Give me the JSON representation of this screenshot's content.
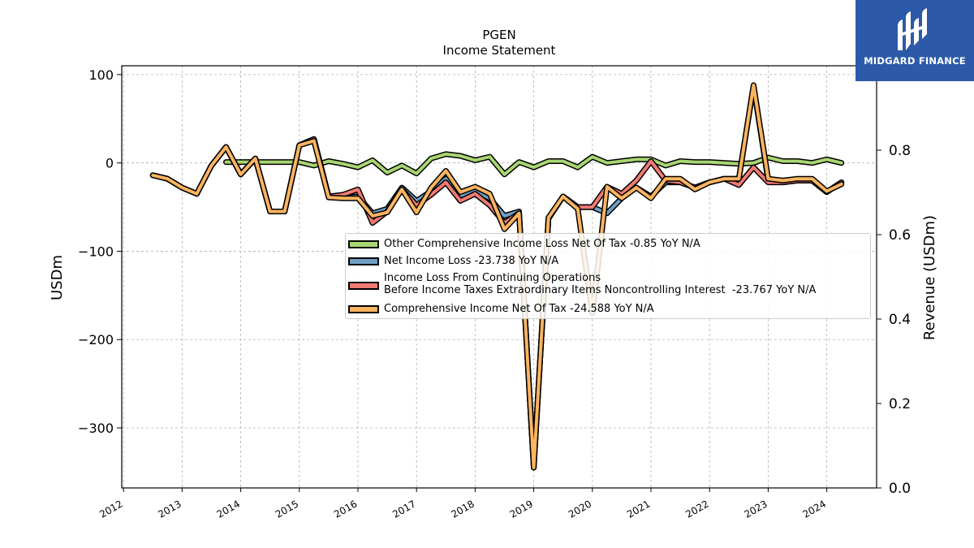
{
  "chart_data": {
    "type": "line",
    "title": "PGEN",
    "subtitle": "Income Statement",
    "ylabel": "USDm",
    "ylabel_right": "Revenue (USDm)",
    "ylim": [
      -368,
      110
    ],
    "ylim_right": [
      0.0,
      1.0
    ],
    "yticks": [
      100,
      0,
      -100,
      -200,
      -300
    ],
    "ytick_labels": [
      "100",
      "0",
      "−100",
      "−200",
      "−300"
    ],
    "yticks_right": [
      0.0,
      0.2,
      0.4,
      0.6,
      0.8
    ],
    "ytick_labels_right": [
      "0.0",
      "0.2",
      "0.4",
      "0.6",
      "0.8"
    ],
    "xticks": [
      2012,
      2013,
      2014,
      2015,
      2016,
      2017,
      2018,
      2019,
      2020,
      2021,
      2022,
      2023,
      2024
    ],
    "xtick_labels": [
      "2012",
      "2013",
      "2014",
      "2015",
      "2016",
      "2017",
      "2018",
      "2019",
      "2020",
      "2021",
      "2022",
      "2023",
      "2024"
    ],
    "grid": true,
    "legend_position": "center-right",
    "series": [
      {
        "name": "Other Comprehensive Income Loss Net Of Tax  -0.85 YoY N/A",
        "color": "#a8d672",
        "x": [
          2013.75,
          2014.0,
          2014.25,
          2014.5,
          2014.75,
          2015.0,
          2015.25,
          2015.5,
          2015.75,
          2016.0,
          2016.25,
          2016.5,
          2016.75,
          2017.0,
          2017.25,
          2017.5,
          2017.75,
          2018.0,
          2018.25,
          2018.5,
          2018.75,
          2019.0,
          2019.25,
          2019.5,
          2019.75,
          2020.0,
          2020.25,
          2020.5,
          2020.75,
          2021.0,
          2021.25,
          2021.5,
          2021.75,
          2022.0,
          2022.25,
          2022.5,
          2022.75,
          2023.0,
          2023.25,
          2023.5,
          2023.75,
          2024.0,
          2024.25
        ],
        "y": [
          1,
          1,
          1,
          1,
          1,
          1,
          -3,
          2,
          -1,
          -5,
          3,
          -11,
          -3,
          -12,
          5,
          10,
          8,
          3,
          7,
          -13,
          1,
          -5,
          2,
          2,
          -5,
          7,
          0,
          2,
          4,
          4,
          -3,
          2,
          1,
          1,
          0,
          -1,
          0,
          6,
          2,
          2,
          0,
          4,
          0
        ]
      },
      {
        "name": "Net Income Loss  -23.738 YoY N/A",
        "color": "#6f9fc5",
        "x": [
          2012.5,
          2012.75,
          2013.0,
          2013.25,
          2013.5,
          2013.75,
          2014.0,
          2014.25,
          2014.5,
          2014.75,
          2015.0,
          2015.25,
          2015.5,
          2015.75,
          2016.0,
          2016.25,
          2016.5,
          2016.75,
          2017.0,
          2017.25,
          2017.5,
          2017.75,
          2018.0,
          2018.25,
          2018.5,
          2018.75,
          2019.0,
          2019.25,
          2019.5,
          2019.75,
          2020.0,
          2020.25,
          2020.5,
          2020.75,
          2021.0,
          2021.25,
          2021.5,
          2021.75,
          2022.0,
          2022.25,
          2022.5,
          2022.75,
          2023.0,
          2023.25,
          2023.5,
          2023.75,
          2024.0,
          2024.25
        ],
        "y": [
          -14,
          -18,
          -28,
          -35,
          -3,
          18,
          -13,
          5,
          -55,
          -55,
          20,
          27,
          -38,
          -39,
          -38,
          -57,
          -52,
          -28,
          -43,
          -32,
          -18,
          -37,
          -32,
          -40,
          -60,
          -55,
          -345,
          -63,
          -38,
          -50,
          -50,
          -57,
          -40,
          -28,
          -38,
          -22,
          -22,
          -28,
          -22,
          -18,
          -18,
          87,
          -20,
          -22,
          -20,
          -20,
          -33,
          -22
        ]
      },
      {
        "name": "Income Loss From Continuing Operations\nBefore Income Taxes Extraordinary Items Noncontrolling Interest  -23.767 YoY N/A",
        "color": "#f07a72",
        "x": [
          2012.5,
          2012.75,
          2013.0,
          2013.25,
          2013.5,
          2013.75,
          2014.0,
          2014.25,
          2014.5,
          2014.75,
          2015.0,
          2015.25,
          2015.5,
          2015.75,
          2016.0,
          2016.25,
          2016.5,
          2016.75,
          2017.0,
          2017.25,
          2017.5,
          2017.75,
          2018.0,
          2018.25,
          2018.5,
          2018.75,
          2019.0,
          2019.25,
          2019.5,
          2019.75,
          2020.0,
          2020.25,
          2020.5,
          2020.75,
          2021.0,
          2021.25,
          2021.5,
          2021.75,
          2022.0,
          2022.25,
          2022.5,
          2022.75,
          2023.0,
          2023.25,
          2023.5,
          2023.75,
          2024.0,
          2024.25
        ],
        "y": [
          -14,
          -18,
          -28,
          -35,
          -3,
          18,
          -13,
          5,
          -55,
          -55,
          20,
          27,
          -38,
          -36,
          -30,
          -68,
          -55,
          -30,
          -48,
          -36,
          -22,
          -43,
          -35,
          -48,
          -68,
          -57,
          -345,
          -63,
          -38,
          -50,
          -50,
          -27,
          -35,
          -20,
          2,
          -20,
          -22,
          -28,
          -22,
          -18,
          -25,
          -5,
          -22,
          -22,
          -20,
          -20,
          -33,
          -22
        ]
      },
      {
        "name": "Comprehensive Income Net Of Tax  -24.588 YoY N/A",
        "color": "#fbb460",
        "x": [
          2012.5,
          2012.75,
          2013.0,
          2013.25,
          2013.5,
          2013.75,
          2014.0,
          2014.25,
          2014.5,
          2014.75,
          2015.0,
          2015.25,
          2015.5,
          2015.75,
          2016.0,
          2016.25,
          2016.5,
          2016.75,
          2017.0,
          2017.25,
          2017.5,
          2017.75,
          2018.0,
          2018.25,
          2018.5,
          2018.75,
          2019.0,
          2019.25,
          2019.5,
          2019.75,
          2020.0,
          2020.25,
          2020.5,
          2020.75,
          2021.0,
          2021.25,
          2021.5,
          2021.75,
          2022.0,
          2022.25,
          2022.5,
          2022.75,
          2023.0,
          2023.25,
          2023.5,
          2023.75,
          2024.0,
          2024.25
        ],
        "y": [
          -14,
          -18,
          -28,
          -35,
          -3,
          18,
          -13,
          5,
          -55,
          -55,
          20,
          25,
          -39,
          -40,
          -40,
          -60,
          -56,
          -30,
          -56,
          -28,
          -9,
          -33,
          -27,
          -35,
          -75,
          -57,
          -345,
          -62,
          -38,
          -52,
          -170,
          -27,
          -40,
          -28,
          -40,
          -18,
          -18,
          -30,
          -22,
          -18,
          -18,
          88,
          -18,
          -20,
          -18,
          -18,
          -32,
          -24
        ]
      }
    ]
  },
  "logo": {
    "text": "MIDGARD FINANCE",
    "background": "#2c5aa8"
  }
}
